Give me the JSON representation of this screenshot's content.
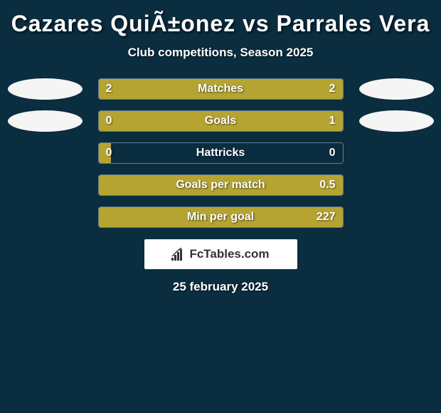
{
  "title": "Cazares QuiÃ±onez vs Parrales Vera",
  "subtitle": "Club competitions, Season 2025",
  "background_color": "#0a2d3f",
  "bar_fill_color": "#b5a432",
  "bar_border_color": "#667a88",
  "text_color": "#ffffff",
  "ellipse_color": "#f5f5f5",
  "title_fontsize": 32,
  "subtitle_fontsize": 17,
  "value_fontsize": 16,
  "label_fontsize": 16,
  "stats": [
    {
      "label": "Matches",
      "left_value": "2",
      "right_value": "2",
      "left_fill_pct": 50,
      "right_fill_pct": 50,
      "show_ellipses": true
    },
    {
      "label": "Goals",
      "left_value": "0",
      "right_value": "1",
      "left_fill_pct": 18,
      "right_fill_pct": 82,
      "show_ellipses": true
    },
    {
      "label": "Hattricks",
      "left_value": "0",
      "right_value": "0",
      "left_fill_pct": 5,
      "right_fill_pct": 0,
      "show_ellipses": false
    },
    {
      "label": "Goals per match",
      "left_value": "",
      "right_value": "0.5",
      "left_fill_pct": 0,
      "right_fill_pct": 100,
      "show_ellipses": false
    },
    {
      "label": "Min per goal",
      "left_value": "",
      "right_value": "227",
      "left_fill_pct": 0,
      "right_fill_pct": 100,
      "show_ellipses": false
    }
  ],
  "logo_text": "FcTables.com",
  "date_text": "25 february 2025"
}
